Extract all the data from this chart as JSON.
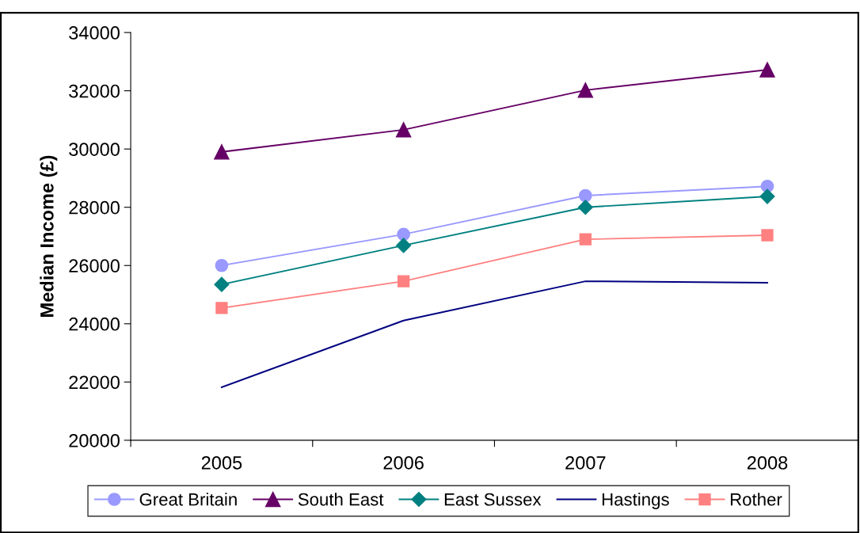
{
  "chart_data": {
    "type": "line",
    "ylabel": "Median Income (£)",
    "categories": [
      "2005",
      "2006",
      "2007",
      "2008"
    ],
    "series": [
      {
        "name": "Great Britain",
        "color": "#9999ff",
        "marker": "circle",
        "values": [
          26000,
          27070,
          28400,
          28720
        ]
      },
      {
        "name": "South East",
        "color": "#660066",
        "marker": "triangle",
        "values": [
          29900,
          30660,
          32020,
          32720
        ]
      },
      {
        "name": "East Sussex",
        "color": "#008080",
        "marker": "diamond",
        "values": [
          25350,
          26690,
          28000,
          28370
        ]
      },
      {
        "name": "Hastings",
        "color": "#000080",
        "marker": "none",
        "values": [
          21820,
          24110,
          25460,
          25410
        ]
      },
      {
        "name": "Rother",
        "color": "#ff8080",
        "marker": "square",
        "values": [
          24540,
          25460,
          26900,
          27040
        ]
      }
    ],
    "ylim": [
      20000,
      34000
    ],
    "yticks": [
      20000,
      22000,
      24000,
      26000,
      28000,
      30000,
      32000,
      34000
    ],
    "grid": false,
    "legend": "bottom"
  }
}
